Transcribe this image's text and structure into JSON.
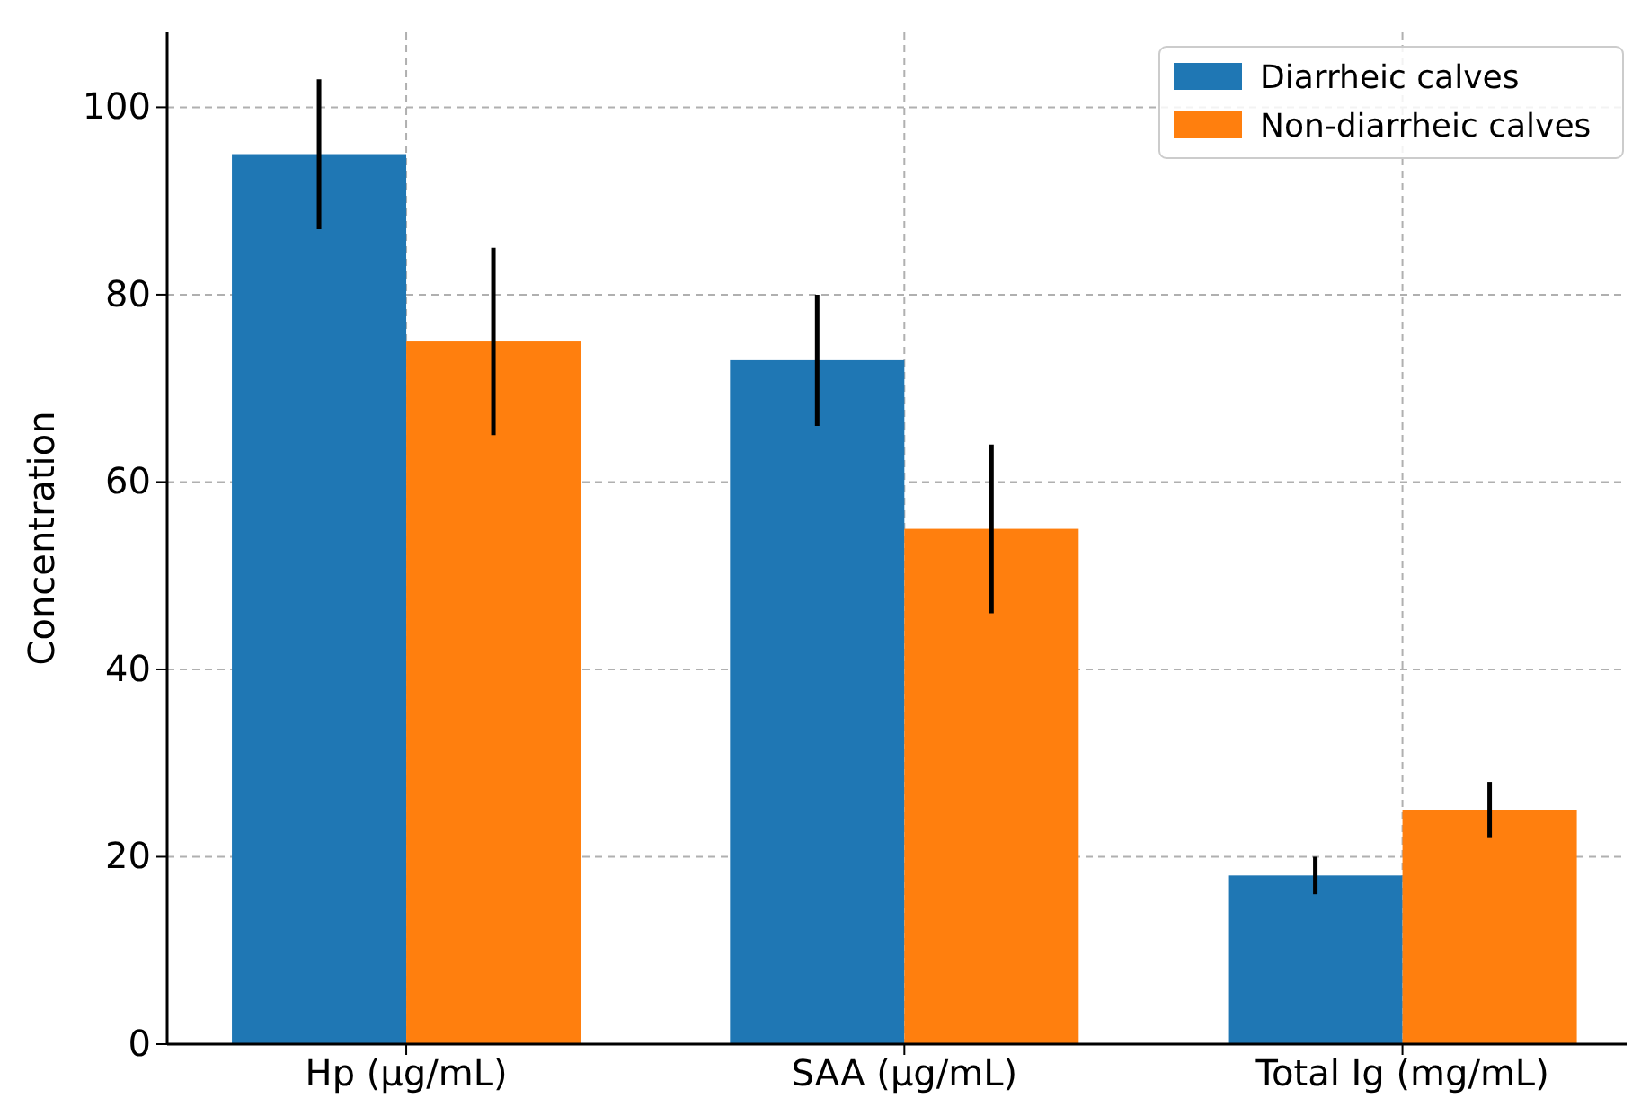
{
  "chart_data": {
    "type": "bar",
    "ylabel": "Concentration",
    "categories": [
      "Hp (µg/mL)",
      "SAA (µg/mL)",
      "Total Ig (mg/mL)"
    ],
    "series": [
      {
        "name": "Diarrheic calves",
        "color": "#1f77b4",
        "values": [
          95,
          73,
          18
        ],
        "errors": [
          8,
          7,
          2
        ]
      },
      {
        "name": "Non-diarrheic calves",
        "color": "#ff7f0e",
        "values": [
          75,
          55,
          25
        ],
        "errors": [
          10,
          9,
          3
        ]
      }
    ],
    "ylim": [
      0,
      108
    ],
    "yticks": [
      0,
      20,
      40,
      60,
      80,
      100
    ],
    "grid": true,
    "legend": "top right"
  }
}
